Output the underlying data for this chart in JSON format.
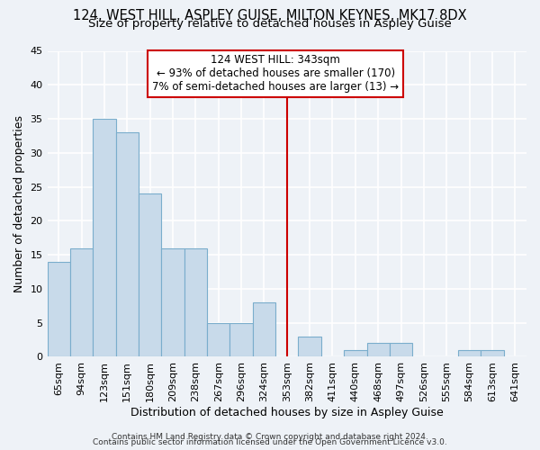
{
  "title": "124, WEST HILL, ASPLEY GUISE, MILTON KEYNES, MK17 8DX",
  "subtitle": "Size of property relative to detached houses in Aspley Guise",
  "xlabel": "Distribution of detached houses by size in Aspley Guise",
  "ylabel": "Number of detached properties",
  "bin_labels": [
    "65sqm",
    "94sqm",
    "123sqm",
    "151sqm",
    "180sqm",
    "209sqm",
    "238sqm",
    "267sqm",
    "296sqm",
    "324sqm",
    "353sqm",
    "382sqm",
    "411sqm",
    "440sqm",
    "468sqm",
    "497sqm",
    "526sqm",
    "555sqm",
    "584sqm",
    "613sqm",
    "641sqm"
  ],
  "bar_heights": [
    14,
    16,
    35,
    33,
    24,
    16,
    16,
    5,
    5,
    8,
    0,
    3,
    0,
    1,
    2,
    2,
    0,
    0,
    1,
    1,
    0
  ],
  "bar_color": "#c8daea",
  "bar_edge_color": "#7aadcc",
  "ylim": [
    0,
    45
  ],
  "yticks": [
    0,
    5,
    10,
    15,
    20,
    25,
    30,
    35,
    40,
    45
  ],
  "vline_x_index": 10,
  "vline_color": "#cc0000",
  "annotation_text": "124 WEST HILL: 343sqm\n← 93% of detached houses are smaller (170)\n7% of semi-detached houses are larger (13) →",
  "annotation_box_color": "#ffffff",
  "annotation_box_edge_color": "#cc0000",
  "footer_line1": "Contains HM Land Registry data © Crown copyright and database right 2024.",
  "footer_line2": "Contains public sector information licensed under the Open Government Licence v3.0.",
  "background_color": "#eef2f7",
  "plot_background_color": "#eef2f7",
  "grid_color": "#ffffff",
  "title_fontsize": 10.5,
  "subtitle_fontsize": 9.5,
  "axis_label_fontsize": 9,
  "tick_fontsize": 8,
  "annotation_fontsize": 8.5,
  "footer_fontsize": 6.5
}
